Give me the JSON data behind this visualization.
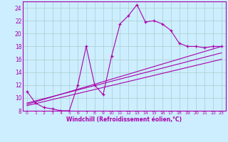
{
  "xlabel": "Windchill (Refroidissement éolien,°C)",
  "background_color": "#cceeff",
  "grid_color": "#aacccc",
  "line_color": "#aa00aa",
  "xlim": [
    -0.5,
    23.5
  ],
  "ylim": [
    8,
    25
  ],
  "xticks": [
    0,
    1,
    2,
    3,
    4,
    5,
    6,
    7,
    8,
    9,
    10,
    11,
    12,
    13,
    14,
    15,
    16,
    17,
    18,
    19,
    20,
    21,
    22,
    23
  ],
  "yticks": [
    8,
    10,
    12,
    14,
    16,
    18,
    20,
    22,
    24
  ],
  "curve1_x": [
    0,
    1,
    2,
    3,
    4,
    5,
    6,
    7,
    8,
    9,
    10,
    11,
    12,
    13,
    14,
    15,
    16,
    17,
    18,
    19,
    20,
    21,
    22,
    23
  ],
  "curve1_y": [
    11,
    9.2,
    8.5,
    8.3,
    8.0,
    8.0,
    12.0,
    18.0,
    12.0,
    10.5,
    16.5,
    21.5,
    22.8,
    24.5,
    21.8,
    22.0,
    21.5,
    20.5,
    18.5,
    18.0,
    18.0,
    17.8,
    18.0,
    18.0
  ],
  "line1_x": [
    0,
    23
  ],
  "line1_y": [
    9.0,
    18.0
  ],
  "line2_x": [
    0,
    23
  ],
  "line2_y": [
    9.2,
    17.0
  ],
  "line3_x": [
    0,
    23
  ],
  "line3_y": [
    8.8,
    16.0
  ]
}
